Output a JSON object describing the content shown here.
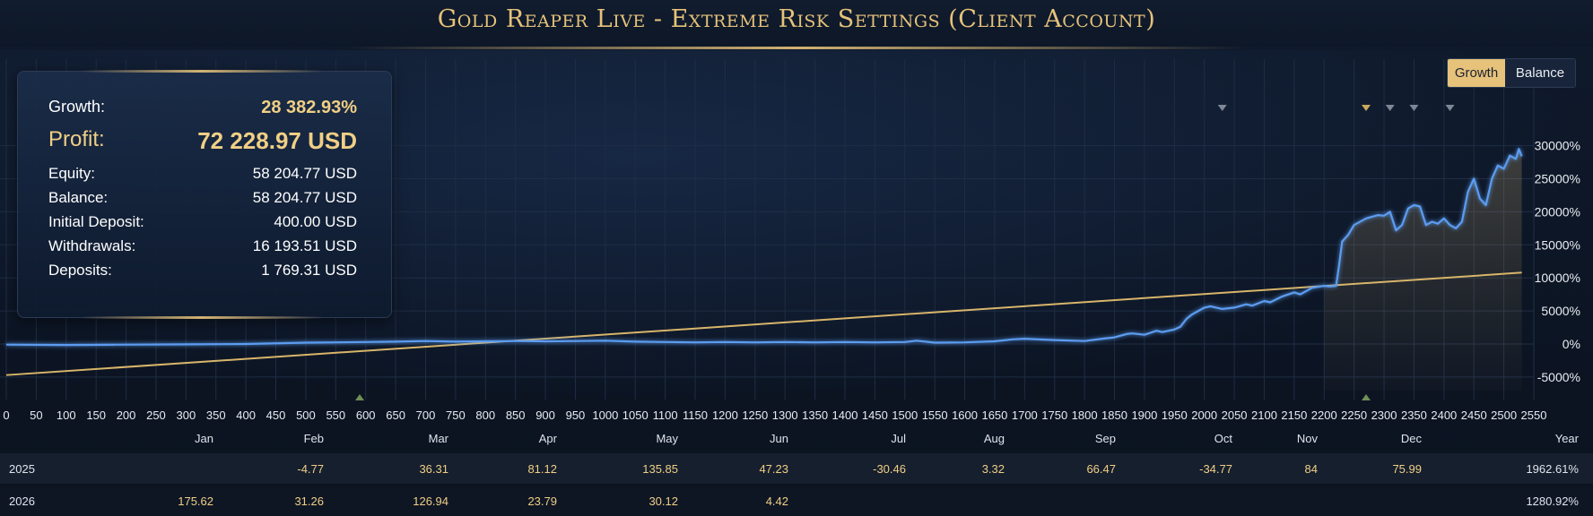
{
  "title": "Gold Reaper Live - Extreme Risk Settings (Client Account)",
  "toggle": {
    "active": "Growth",
    "inactive": "Balance"
  },
  "stats": {
    "growth_label": "Growth:",
    "growth_value": "28 382.93%",
    "profit_label": "Profit:",
    "profit_value": "72 228.97 USD",
    "rows": [
      {
        "label": "Equity:",
        "value": "58 204.77 USD"
      },
      {
        "label": "Balance:",
        "value": "58 204.77 USD"
      },
      {
        "label": "Initial Deposit:",
        "value": "400.00 USD"
      },
      {
        "label": "Withdrawals:",
        "value": "16 193.51 USD"
      },
      {
        "label": "Deposits:",
        "value": "1 769.31 USD"
      }
    ]
  },
  "colors": {
    "growth_line": "#5b9cf0",
    "trend_line": "#d8b56a",
    "accent": "#e6c27a"
  },
  "chart_data": {
    "type": "line",
    "xlim": [
      0,
      2550
    ],
    "ylim": [
      -7000,
      32000
    ],
    "x_ticks": [
      0,
      50,
      100,
      150,
      200,
      250,
      300,
      350,
      400,
      450,
      500,
      550,
      600,
      650,
      700,
      750,
      800,
      850,
      900,
      950,
      1000,
      1050,
      1100,
      1150,
      1200,
      1250,
      1300,
      1350,
      1400,
      1450,
      1500,
      1550,
      1600,
      1650,
      1700,
      1750,
      1800,
      1850,
      1900,
      1950,
      2000,
      2050,
      2100,
      2150,
      2200,
      2250,
      2300,
      2350,
      2400,
      2450,
      2500,
      2550
    ],
    "y_ticks": [
      -5000,
      0,
      5000,
      10000,
      15000,
      20000,
      25000,
      30000
    ],
    "y_tick_labels": [
      "-5000%",
      "0%",
      "5000%",
      "10000%",
      "15000%",
      "20000%",
      "25000%",
      "30000%"
    ],
    "grid": true,
    "series": [
      {
        "kind": "growth",
        "x": [
          0,
          100,
          200,
          300,
          400,
          500,
          550,
          600,
          650,
          700,
          750,
          800,
          850,
          900,
          950,
          1000,
          1050,
          1100,
          1150,
          1200,
          1250,
          1300,
          1350,
          1400,
          1450,
          1500,
          1520,
          1550,
          1600,
          1650,
          1680,
          1700,
          1750,
          1800,
          1830,
          1850,
          1870,
          1880,
          1900,
          1910,
          1920,
          1930,
          1950,
          1960,
          1970,
          1980,
          2000,
          2010,
          2030,
          2050,
          2070,
          2080,
          2100,
          2110,
          2130,
          2150,
          2160,
          2180,
          2200,
          2210,
          2220,
          2225,
          2230,
          2240,
          2250,
          2270,
          2290,
          2300,
          2310,
          2320,
          2330,
          2340,
          2350,
          2360,
          2370,
          2380,
          2390,
          2400,
          2410,
          2420,
          2430,
          2440,
          2450,
          2460,
          2470,
          2480,
          2490,
          2500,
          2510,
          2520,
          2525,
          2530
        ],
        "y": [
          -100,
          -150,
          -100,
          -50,
          0,
          200,
          250,
          300,
          350,
          450,
          350,
          400,
          450,
          400,
          450,
          500,
          350,
          300,
          250,
          300,
          250,
          300,
          250,
          300,
          250,
          300,
          500,
          200,
          250,
          400,
          700,
          800,
          600,
          450,
          800,
          1000,
          1500,
          1600,
          1400,
          1700,
          2000,
          1800,
          2200,
          2600,
          3800,
          4500,
          5500,
          5700,
          5300,
          5500,
          6000,
          5800,
          6500,
          6300,
          7200,
          7800,
          7500,
          8500,
          8800,
          8700,
          8800,
          12000,
          15500,
          16500,
          18000,
          19000,
          19500,
          19400,
          20000,
          17200,
          18000,
          20500,
          21000,
          20800,
          18000,
          18500,
          18200,
          19000,
          18000,
          17500,
          18500,
          23000,
          25000,
          22000,
          21000,
          25000,
          27000,
          26500,
          28500,
          28000,
          29500,
          28400
        ]
      },
      {
        "kind": "trend",
        "x": [
          0,
          2530
        ],
        "y": [
          -4700,
          10800
        ]
      }
    ],
    "markers_top_x": [
      2030,
      2270,
      2310,
      2350,
      2410
    ],
    "markers_bottom_x": [
      590,
      2270
    ],
    "months": [
      "Jan",
      "Feb",
      "Mar",
      "Apr",
      "May",
      "Jun",
      "Jul",
      "Aug",
      "Sep",
      "Oct",
      "Nov",
      "Dec",
      "Year"
    ],
    "table": [
      {
        "year": "2025",
        "values": [
          "",
          "-4.77",
          "36.31",
          "81.12",
          "135.85",
          "47.23",
          "-30.46",
          "3.32",
          "66.47",
          "-34.77",
          "84",
          "75.99",
          "1962.61%"
        ]
      },
      {
        "year": "2026",
        "values": [
          "175.62",
          "31.26",
          "126.94",
          "23.79",
          "30.12",
          "4.42",
          "",
          "",
          "",
          "",
          "",
          "",
          "1280.92%"
        ]
      }
    ]
  }
}
